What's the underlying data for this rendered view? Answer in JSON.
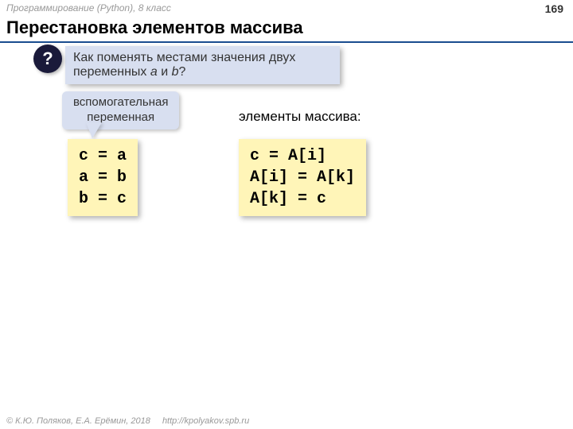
{
  "header": {
    "course_line": "Программирование (Python), 8 класс",
    "page_number": "169",
    "title": "Перестановка элементов массива"
  },
  "question": {
    "symbol": "?",
    "text_part1": "Как поменять местами значения двух переменных ",
    "var_a": "a",
    "and_word": " и ",
    "var_b": "b",
    "qmark": "?"
  },
  "helper": {
    "line1": "вспомогательная",
    "line2": "переменная"
  },
  "array_label": "элементы массива:",
  "code_left": "c = a\na = b\nb = c",
  "code_right": "c = A[i]\nA[i] = A[k]\nA[k] = c",
  "footer": {
    "copyright": "© К.Ю. Поляков, Е.А. Ерёмин, 2018",
    "url": "http://kpolyakov.spb.ru"
  },
  "colors": {
    "underline": "#1a4d8f",
    "callout_bg": "#d8dff0",
    "code_bg": "#fff5b8",
    "circle_bg": "#1a1a3a"
  }
}
